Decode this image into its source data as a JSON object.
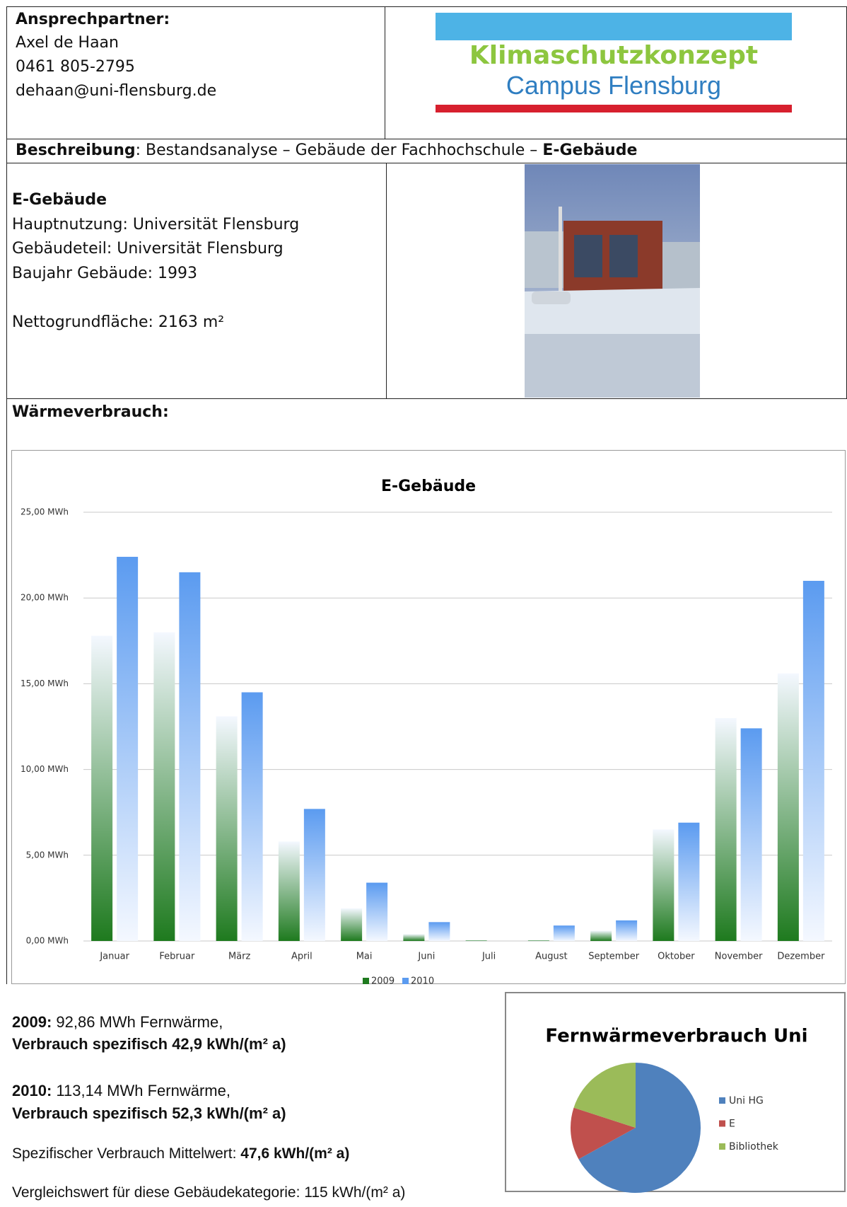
{
  "contact": {
    "label": "Ansprechpartner:",
    "name": "Axel de Haan",
    "phone": "0461 805-2795",
    "email": "dehaan@uni-flensburg.de"
  },
  "logo": {
    "line1": "Klimaschutzkonzept",
    "line2": "Campus Flensburg"
  },
  "description": {
    "label": "Beschreibung",
    "text": ": Bestandsanalyse – Gebäude der Fachhochschule – ",
    "building": "E-Gebäude"
  },
  "building": {
    "name": "E-Gebäude",
    "lines": [
      "Hauptnutzung: Universität Flensburg",
      "Gebäudeteil: Universität Flensburg",
      "Baujahr Gebäude: 1993"
    ],
    "area": "Nettogrundfläche: 2163 m²"
  },
  "section_title": "Wärmeverbrauch:",
  "chart_data": [
    {
      "type": "bar",
      "title": "E-Gebäude",
      "categories": [
        "Januar",
        "Februar",
        "März",
        "April",
        "Mai",
        "Juni",
        "Juli",
        "August",
        "September",
        "Oktober",
        "November",
        "Dezember"
      ],
      "series": [
        {
          "name": "2009",
          "color": "#1e7a1e",
          "values": [
            17.8,
            18.0,
            13.1,
            5.8,
            1.9,
            0.4,
            0.05,
            0.05,
            0.6,
            6.5,
            13.0,
            15.6
          ]
        },
        {
          "name": "2010",
          "color": "#5b9bf0",
          "values": [
            22.4,
            21.5,
            14.5,
            7.7,
            3.4,
            1.1,
            0,
            0.9,
            1.2,
            6.9,
            12.4,
            21.0
          ]
        }
      ],
      "ylim": [
        0,
        25
      ],
      "yticks": [
        {
          "value": 0,
          "label": "0,00 MWh"
        },
        {
          "value": 5,
          "label": "5,00 MWh"
        },
        {
          "value": 10,
          "label": "10,00 MWh"
        },
        {
          "value": 15,
          "label": "15,00 MWh"
        },
        {
          "value": 20,
          "label": "20,00 MWh"
        },
        {
          "value": 25,
          "label": "25,00 MWh"
        }
      ],
      "grid": true,
      "legend": "bottom"
    },
    {
      "type": "pie",
      "title": "Fernwärmeverbrauch Uni",
      "categories": [
        "Uni HG",
        "E",
        "Bibliothek"
      ],
      "values": [
        67,
        13,
        20
      ],
      "colors": [
        "#4f81bd",
        "#c0504d",
        "#9bbb59"
      ],
      "legend": "right"
    }
  ],
  "summary": [
    {
      "year": "2009:",
      "text": " 92,86 MWh Fernwärme,",
      "specific": "Verbrauch spezifisch 42,9 kWh/(m² a)"
    },
    {
      "year": "2010:",
      "text": " 113,14 MWh Fernwärme,",
      "specific": "Verbrauch spezifisch 52,3 kWh/(m² a)"
    }
  ],
  "mean": {
    "label": "Spezifischer Verbrauch Mittelwert: ",
    "value": "47,6 kWh/(m² a)"
  },
  "reference": "Vergleichswert für diese Gebäudekategorie: 115 kWh/(m² a)"
}
